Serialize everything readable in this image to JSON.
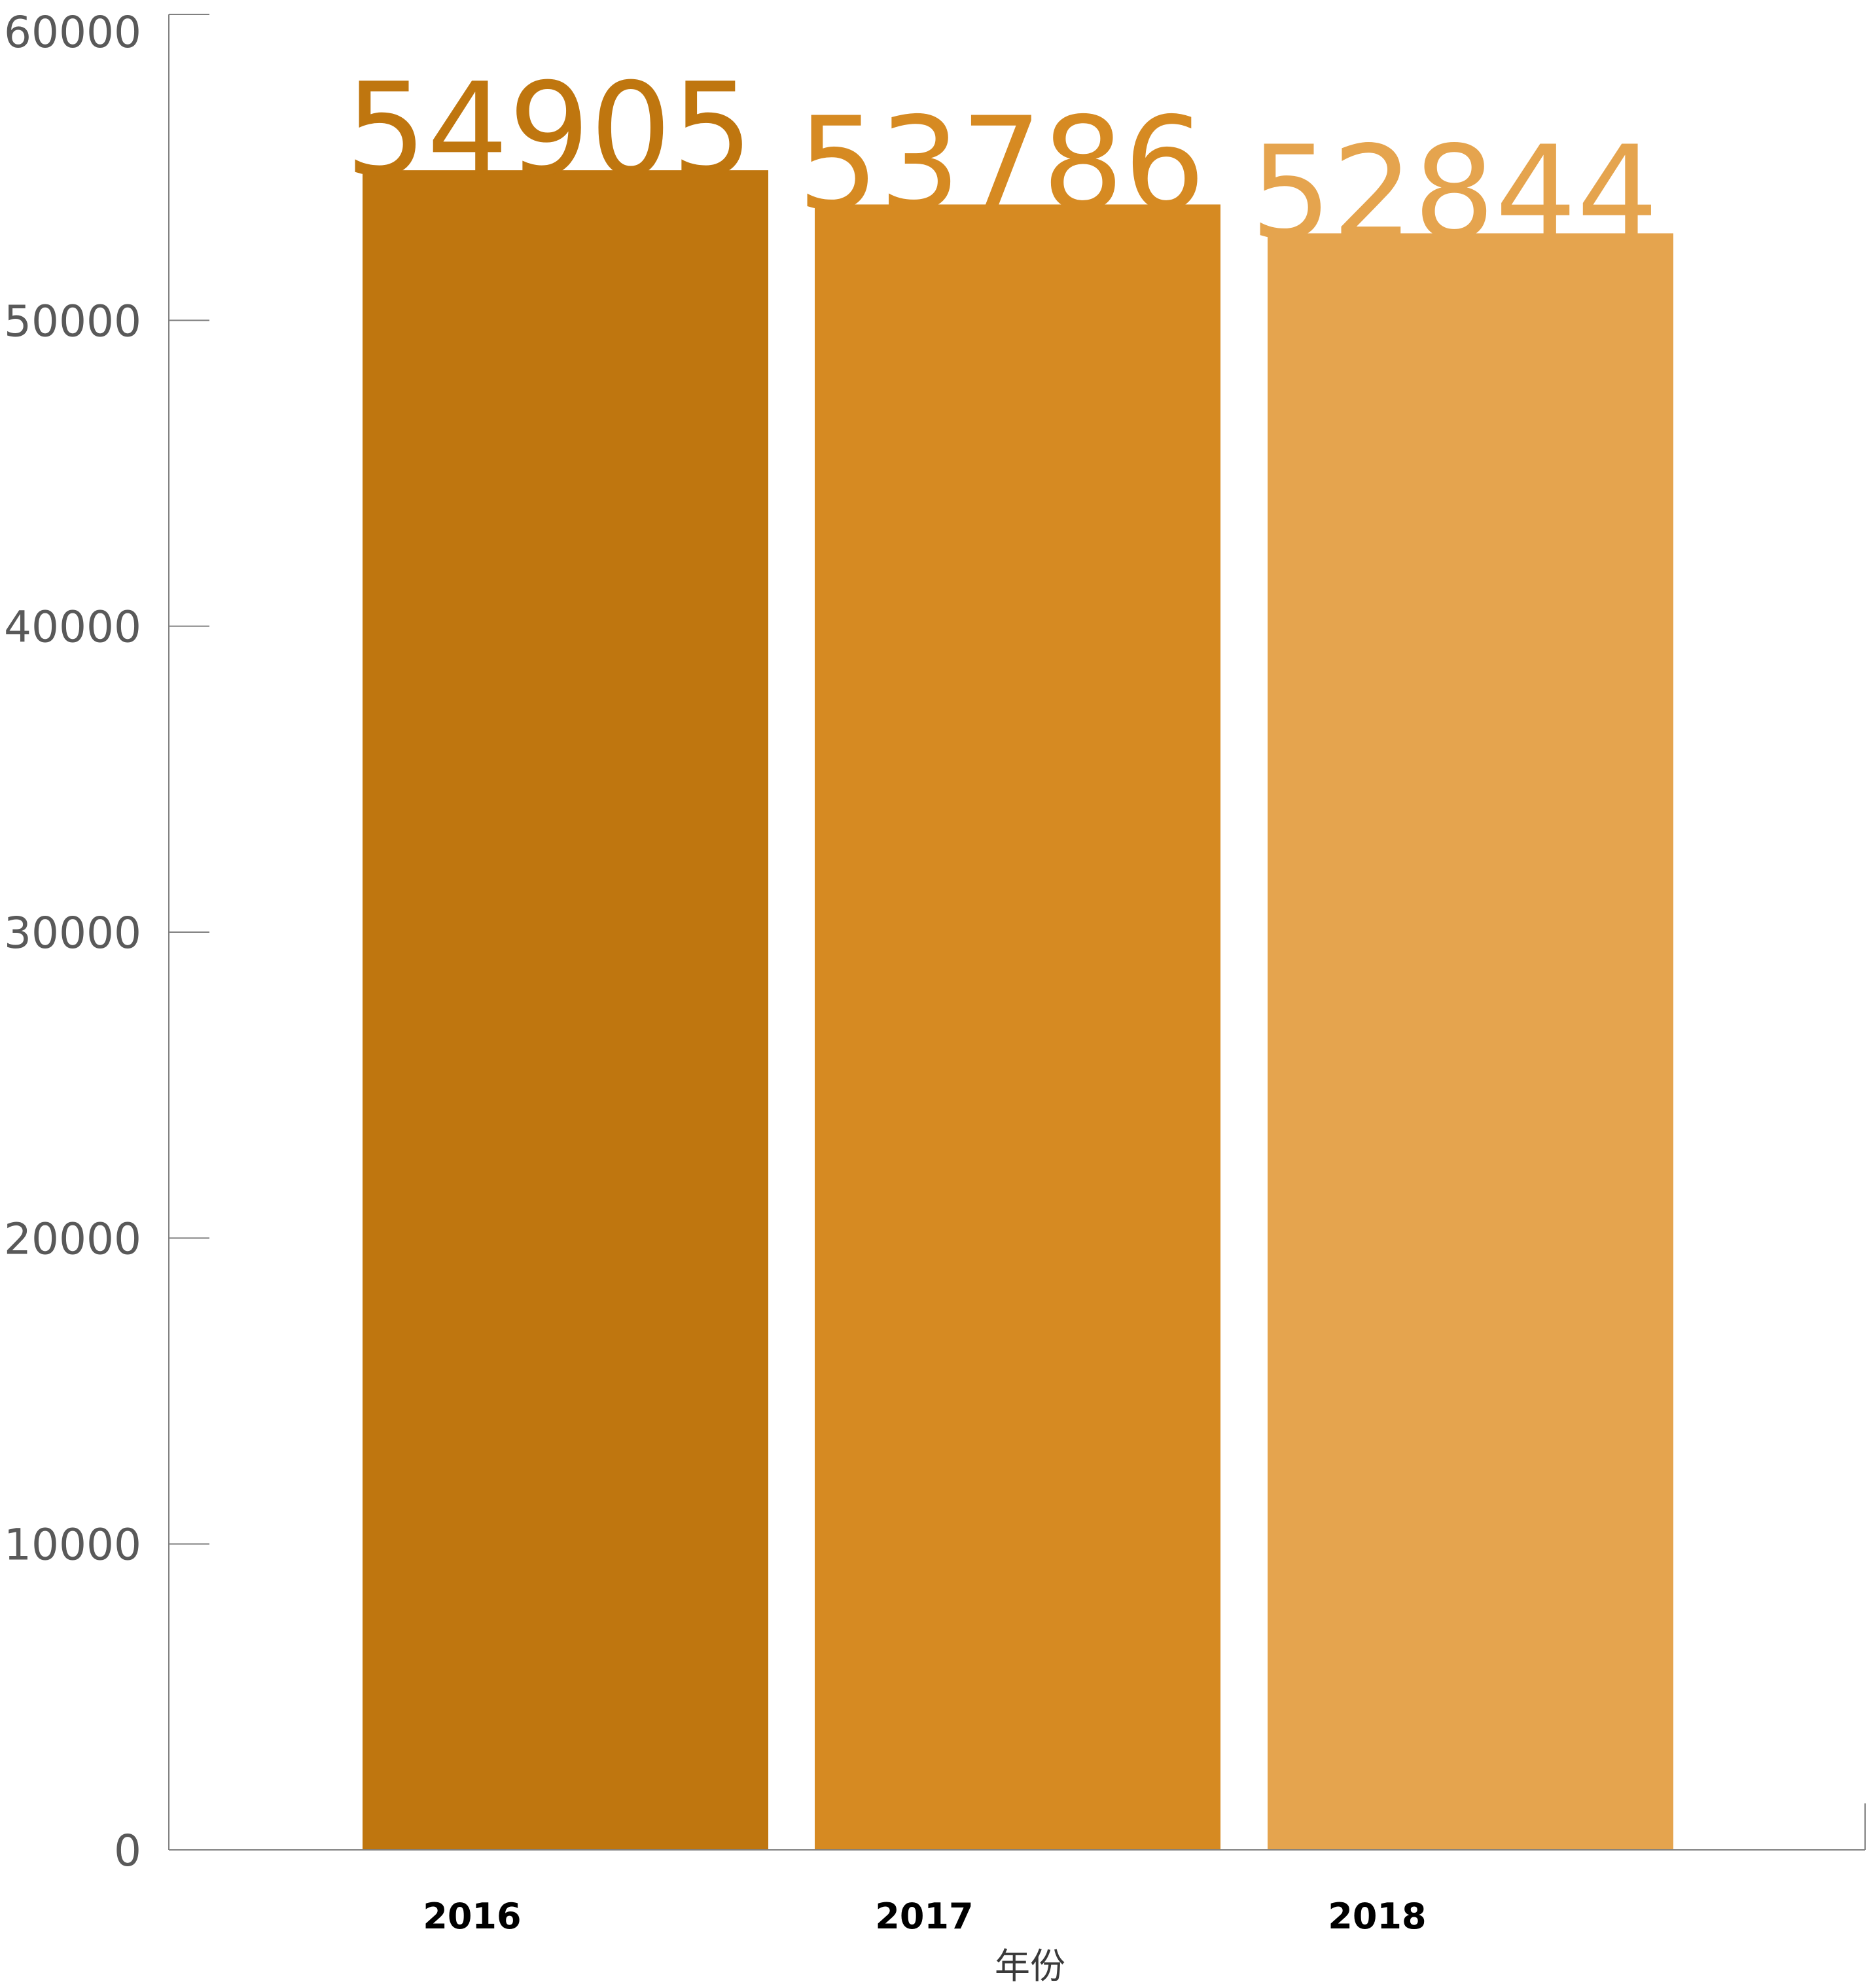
{
  "chart_data": {
    "type": "bar",
    "categories": [
      "2016",
      "2017",
      "2018"
    ],
    "values": [
      54905,
      53786,
      52844
    ],
    "data_labels": [
      "54905",
      "53786",
      "52844"
    ],
    "bar_colors": [
      "#bf760f",
      "#d68a22",
      "#e5a44e"
    ],
    "title": "",
    "xlabel": "年份",
    "ylabel": "",
    "ylim": [
      0,
      60000
    ],
    "yticks": [
      "0",
      "10000",
      "20000",
      "30000",
      "40000",
      "50000",
      "60000"
    ],
    "grid": false,
    "legend": "none"
  }
}
